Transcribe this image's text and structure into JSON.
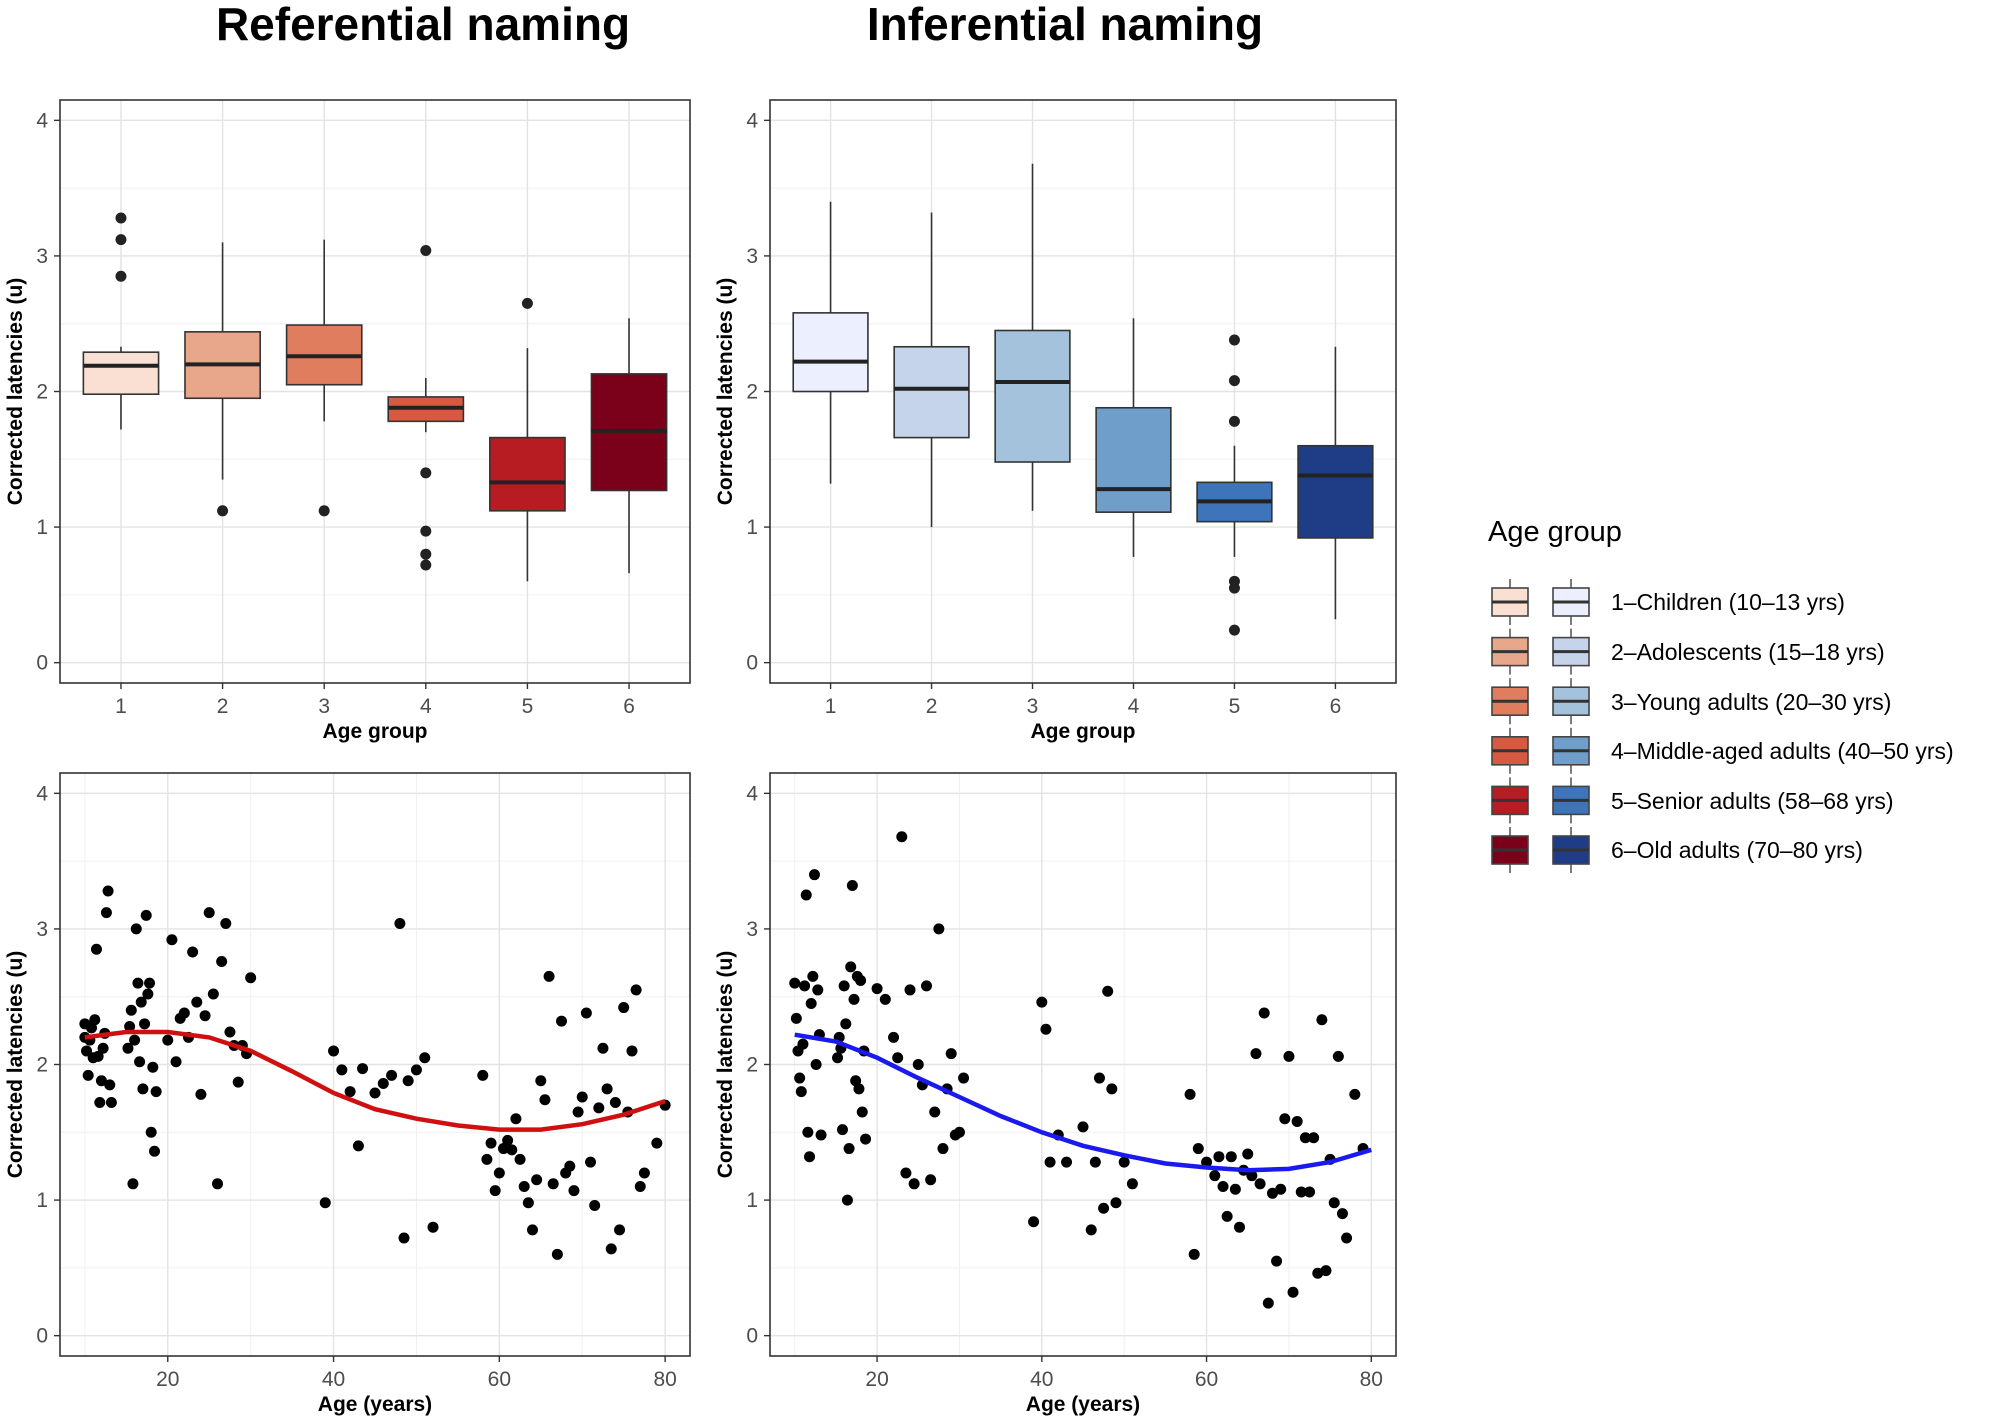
{
  "figure": {
    "titles": [
      "Referential naming",
      "Inferential naming"
    ]
  },
  "colors": {
    "referential": [
      "#f9e0d3",
      "#e8a68a",
      "#e07d5e",
      "#d75a40",
      "#b71c22",
      "#7b0019"
    ],
    "inferential": [
      "#ecf0fe",
      "#c6d4eb",
      "#a4c2dc",
      "#6f9ecb",
      "#3e74b9",
      "#1f3d86"
    ],
    "referential_smooth": "#d01010",
    "inferential_smooth": "#1a1aee"
  },
  "legend": {
    "title": "Age group",
    "items": [
      "1–Children (10–13 yrs)",
      "2–Adolescents (15–18 yrs)",
      "3–Young adults (20–30 yrs)",
      "4–Middle-aged adults (40–50 yrs)",
      "5–Senior adults (58–68 yrs)",
      "6–Old adults (70–80 yrs)"
    ]
  },
  "chart_data": [
    {
      "type": "box",
      "title": "Referential naming",
      "xlabel": "Age group",
      "ylabel": "Corrected latencies (u)",
      "categories": [
        "1",
        "2",
        "3",
        "4",
        "5",
        "6"
      ],
      "ylim": [
        -0.15,
        4.15
      ],
      "yticks": [
        0,
        1,
        2,
        3,
        4
      ],
      "boxes": [
        {
          "lo": 1.72,
          "q1": 1.98,
          "med": 2.19,
          "q3": 2.29,
          "hi": 2.33,
          "out": [
            2.85,
            3.12,
            3.28
          ]
        },
        {
          "lo": 1.35,
          "q1": 1.95,
          "med": 2.2,
          "q3": 2.44,
          "hi": 3.1,
          "out": [
            1.12
          ]
        },
        {
          "lo": 1.78,
          "q1": 2.05,
          "med": 2.26,
          "q3": 2.49,
          "hi": 3.12,
          "out": [
            1.12
          ]
        },
        {
          "lo": 1.7,
          "q1": 1.78,
          "med": 1.88,
          "q3": 1.96,
          "hi": 2.1,
          "out": [
            3.04,
            1.4,
            0.97,
            0.8,
            0.72
          ]
        },
        {
          "lo": 0.6,
          "q1": 1.12,
          "med": 1.33,
          "q3": 1.66,
          "hi": 2.32,
          "out": [
            2.65
          ]
        },
        {
          "lo": 0.66,
          "q1": 1.27,
          "med": 1.71,
          "q3": 2.13,
          "hi": 2.54,
          "out": []
        }
      ]
    },
    {
      "type": "box",
      "title": "Inferential naming",
      "xlabel": "Age group",
      "ylabel": "Corrected latencies (u)",
      "categories": [
        "1",
        "2",
        "3",
        "4",
        "5",
        "6"
      ],
      "ylim": [
        -0.15,
        4.15
      ],
      "yticks": [
        0,
        1,
        2,
        3,
        4
      ],
      "boxes": [
        {
          "lo": 1.32,
          "q1": 2.0,
          "med": 2.22,
          "q3": 2.58,
          "hi": 3.4,
          "out": []
        },
        {
          "lo": 1.0,
          "q1": 1.66,
          "med": 2.02,
          "q3": 2.33,
          "hi": 3.32,
          "out": []
        },
        {
          "lo": 1.12,
          "q1": 1.48,
          "med": 2.07,
          "q3": 2.45,
          "hi": 3.68,
          "out": []
        },
        {
          "lo": 0.78,
          "q1": 1.11,
          "med": 1.28,
          "q3": 1.88,
          "hi": 2.54,
          "out": []
        },
        {
          "lo": 0.78,
          "q1": 1.04,
          "med": 1.19,
          "q3": 1.33,
          "hi": 1.6,
          "out": [
            2.38,
            2.08,
            1.78,
            0.6,
            0.55,
            0.24
          ]
        },
        {
          "lo": 0.32,
          "q1": 0.92,
          "med": 1.38,
          "q3": 1.6,
          "hi": 2.33,
          "out": []
        }
      ]
    },
    {
      "type": "scatter",
      "title": "Referential naming",
      "xlabel": "Age (years)",
      "ylabel": "Corrected latencies (u)",
      "xlim": [
        7,
        83
      ],
      "ylim": [
        -0.15,
        4.15
      ],
      "xticks": [
        20,
        40,
        60,
        80
      ],
      "yticks": [
        0,
        1,
        2,
        3,
        4
      ],
      "smooth_color": "referential_smooth",
      "smooth": [
        [
          10,
          2.2
        ],
        [
          15,
          2.24
        ],
        [
          20,
          2.24
        ],
        [
          25,
          2.2
        ],
        [
          30,
          2.1
        ],
        [
          35,
          1.95
        ],
        [
          40,
          1.79
        ],
        [
          45,
          1.67
        ],
        [
          50,
          1.6
        ],
        [
          55,
          1.55
        ],
        [
          60,
          1.52
        ],
        [
          65,
          1.52
        ],
        [
          70,
          1.56
        ],
        [
          75,
          1.63
        ],
        [
          80,
          1.73
        ]
      ],
      "points": [
        [
          10,
          2.3
        ],
        [
          10,
          2.2
        ],
        [
          10.2,
          2.1
        ],
        [
          10.4,
          1.92
        ],
        [
          10.6,
          2.18
        ],
        [
          10.8,
          2.27
        ],
        [
          11,
          2.05
        ],
        [
          11.2,
          2.33
        ],
        [
          11.4,
          2.85
        ],
        [
          11.6,
          2.06
        ],
        [
          11.8,
          1.72
        ],
        [
          12,
          1.88
        ],
        [
          12.2,
          2.12
        ],
        [
          12.4,
          2.23
        ],
        [
          12.6,
          3.12
        ],
        [
          12.8,
          3.28
        ],
        [
          13,
          1.85
        ],
        [
          13.2,
          1.72
        ],
        [
          15.2,
          2.12
        ],
        [
          15.4,
          2.28
        ],
        [
          15.6,
          2.4
        ],
        [
          15.8,
          1.12
        ],
        [
          16,
          2.18
        ],
        [
          16.2,
          3.0
        ],
        [
          16.4,
          2.6
        ],
        [
          16.6,
          2.02
        ],
        [
          16.8,
          2.46
        ],
        [
          17,
          1.82
        ],
        [
          17.2,
          2.3
        ],
        [
          17.4,
          3.1
        ],
        [
          17.6,
          2.52
        ],
        [
          17.8,
          2.6
        ],
        [
          18,
          1.5
        ],
        [
          18.2,
          1.98
        ],
        [
          18.4,
          1.36
        ],
        [
          18.6,
          1.8
        ],
        [
          20,
          2.18
        ],
        [
          20.5,
          2.92
        ],
        [
          21,
          2.02
        ],
        [
          21.5,
          2.34
        ],
        [
          22,
          2.38
        ],
        [
          22.5,
          2.2
        ],
        [
          23,
          2.83
        ],
        [
          23.5,
          2.46
        ],
        [
          24,
          1.78
        ],
        [
          24.5,
          2.36
        ],
        [
          25,
          3.12
        ],
        [
          25.5,
          2.52
        ],
        [
          26,
          1.12
        ],
        [
          26.5,
          2.76
        ],
        [
          27,
          3.04
        ],
        [
          27.5,
          2.24
        ],
        [
          28,
          2.14
        ],
        [
          28.5,
          1.87
        ],
        [
          29,
          2.14
        ],
        [
          29.5,
          2.08
        ],
        [
          30,
          2.64
        ],
        [
          39,
          0.98
        ],
        [
          40,
          2.1
        ],
        [
          41,
          1.96
        ],
        [
          42,
          1.8
        ],
        [
          43,
          1.4
        ],
        [
          43.5,
          1.97
        ],
        [
          45,
          1.79
        ],
        [
          46,
          1.86
        ],
        [
          47,
          1.92
        ],
        [
          48,
          3.04
        ],
        [
          48.5,
          0.72
        ],
        [
          49,
          1.88
        ],
        [
          50,
          1.96
        ],
        [
          51,
          2.05
        ],
        [
          52,
          0.8
        ],
        [
          58,
          1.92
        ],
        [
          58.5,
          1.3
        ],
        [
          59,
          1.42
        ],
        [
          59.5,
          1.07
        ],
        [
          60,
          1.2
        ],
        [
          60.5,
          1.38
        ],
        [
          61,
          1.44
        ],
        [
          61.5,
          1.37
        ],
        [
          62,
          1.6
        ],
        [
          62.5,
          1.3
        ],
        [
          63,
          1.1
        ],
        [
          63.5,
          0.98
        ],
        [
          64,
          0.78
        ],
        [
          64.5,
          1.15
        ],
        [
          65,
          1.88
        ],
        [
          65.5,
          1.74
        ],
        [
          66,
          2.65
        ],
        [
          66.5,
          1.12
        ],
        [
          67,
          0.6
        ],
        [
          67.5,
          2.32
        ],
        [
          68,
          1.2
        ],
        [
          68.5,
          1.25
        ],
        [
          69,
          1.07
        ],
        [
          69.5,
          1.65
        ],
        [
          70,
          1.76
        ],
        [
          70.5,
          2.38
        ],
        [
          71,
          1.28
        ],
        [
          71.5,
          0.96
        ],
        [
          72,
          1.68
        ],
        [
          72.5,
          2.12
        ],
        [
          73,
          1.82
        ],
        [
          73.5,
          0.64
        ],
        [
          74,
          1.72
        ],
        [
          74.5,
          0.78
        ],
        [
          75,
          2.42
        ],
        [
          75.5,
          1.65
        ],
        [
          76,
          2.1
        ],
        [
          76.5,
          2.55
        ],
        [
          77,
          1.1
        ],
        [
          77.5,
          1.2
        ],
        [
          79,
          1.42
        ],
        [
          80,
          1.7
        ]
      ]
    },
    {
      "type": "scatter",
      "title": "Inferential naming",
      "xlabel": "Age (years)",
      "ylabel": "Corrected latencies (u)",
      "xlim": [
        7,
        83
      ],
      "ylim": [
        -0.15,
        4.15
      ],
      "xticks": [
        20,
        40,
        60,
        80
      ],
      "yticks": [
        0,
        1,
        2,
        3,
        4
      ],
      "smooth_color": "inferential_smooth",
      "smooth": [
        [
          10,
          2.22
        ],
        [
          15,
          2.17
        ],
        [
          20,
          2.05
        ],
        [
          25,
          1.9
        ],
        [
          30,
          1.76
        ],
        [
          35,
          1.62
        ],
        [
          40,
          1.5
        ],
        [
          45,
          1.4
        ],
        [
          50,
          1.33
        ],
        [
          55,
          1.27
        ],
        [
          60,
          1.24
        ],
        [
          65,
          1.22
        ],
        [
          70,
          1.23
        ],
        [
          75,
          1.28
        ],
        [
          80,
          1.37
        ]
      ],
      "points": [
        [
          10,
          2.6
        ],
        [
          10.2,
          2.34
        ],
        [
          10.4,
          2.1
        ],
        [
          10.6,
          1.9
        ],
        [
          10.8,
          1.8
        ],
        [
          11,
          2.15
        ],
        [
          11.2,
          2.58
        ],
        [
          11.4,
          3.25
        ],
        [
          11.6,
          1.5
        ],
        [
          11.8,
          1.32
        ],
        [
          12,
          2.45
        ],
        [
          12.2,
          2.65
        ],
        [
          12.4,
          3.4
        ],
        [
          12.6,
          2.0
        ],
        [
          12.8,
          2.55
        ],
        [
          13,
          2.22
        ],
        [
          13.2,
          1.48
        ],
        [
          15.2,
          2.05
        ],
        [
          15.4,
          2.2
        ],
        [
          15.6,
          2.12
        ],
        [
          15.8,
          1.52
        ],
        [
          16,
          2.58
        ],
        [
          16.2,
          2.3
        ],
        [
          16.4,
          1.0
        ],
        [
          16.6,
          1.38
        ],
        [
          16.8,
          2.72
        ],
        [
          17,
          3.32
        ],
        [
          17.2,
          2.48
        ],
        [
          17.4,
          1.88
        ],
        [
          17.6,
          2.65
        ],
        [
          17.8,
          1.82
        ],
        [
          18,
          2.62
        ],
        [
          18.2,
          1.65
        ],
        [
          18.4,
          2.1
        ],
        [
          18.6,
          1.45
        ],
        [
          20,
          2.56
        ],
        [
          21,
          2.48
        ],
        [
          22,
          2.2
        ],
        [
          22.5,
          2.05
        ],
        [
          23,
          3.68
        ],
        [
          23.5,
          1.2
        ],
        [
          24,
          2.55
        ],
        [
          24.5,
          1.12
        ],
        [
          25,
          2.0
        ],
        [
          25.5,
          1.85
        ],
        [
          26,
          2.58
        ],
        [
          26.5,
          1.15
        ],
        [
          27,
          1.65
        ],
        [
          27.5,
          3.0
        ],
        [
          28,
          1.38
        ],
        [
          28.5,
          1.82
        ],
        [
          29,
          2.08
        ],
        [
          29.5,
          1.48
        ],
        [
          30,
          1.5
        ],
        [
          30.5,
          1.9
        ],
        [
          39,
          0.84
        ],
        [
          40,
          2.46
        ],
        [
          40.5,
          2.26
        ],
        [
          41,
          1.28
        ],
        [
          42,
          1.48
        ],
        [
          43,
          1.28
        ],
        [
          45,
          1.54
        ],
        [
          46,
          0.78
        ],
        [
          46.5,
          1.28
        ],
        [
          47,
          1.9
        ],
        [
          47.5,
          0.94
        ],
        [
          48,
          2.54
        ],
        [
          48.5,
          1.82
        ],
        [
          49,
          0.98
        ],
        [
          50,
          1.28
        ],
        [
          51,
          1.12
        ],
        [
          58,
          1.78
        ],
        [
          58.5,
          0.6
        ],
        [
          59,
          1.38
        ],
        [
          60,
          1.28
        ],
        [
          61,
          1.18
        ],
        [
          61.5,
          1.32
        ],
        [
          62,
          1.1
        ],
        [
          62.5,
          0.88
        ],
        [
          63,
          1.32
        ],
        [
          63.5,
          1.08
        ],
        [
          64,
          0.8
        ],
        [
          64.5,
          1.22
        ],
        [
          65,
          1.34
        ],
        [
          65.5,
          1.18
        ],
        [
          66,
          2.08
        ],
        [
          66.5,
          1.12
        ],
        [
          67,
          2.38
        ],
        [
          67.5,
          0.24
        ],
        [
          68,
          1.05
        ],
        [
          68.5,
          0.55
        ],
        [
          69,
          1.08
        ],
        [
          69.5,
          1.6
        ],
        [
          70,
          2.06
        ],
        [
          70.5,
          0.32
        ],
        [
          71,
          1.58
        ],
        [
          71.5,
          1.06
        ],
        [
          72,
          1.46
        ],
        [
          72.5,
          1.06
        ],
        [
          73,
          1.46
        ],
        [
          73.5,
          0.46
        ],
        [
          74,
          2.33
        ],
        [
          74.5,
          0.48
        ],
        [
          75,
          1.3
        ],
        [
          75.5,
          0.98
        ],
        [
          76,
          2.06
        ],
        [
          76.5,
          0.9
        ],
        [
          77,
          0.72
        ],
        [
          78,
          1.78
        ],
        [
          79,
          1.38
        ]
      ]
    }
  ]
}
